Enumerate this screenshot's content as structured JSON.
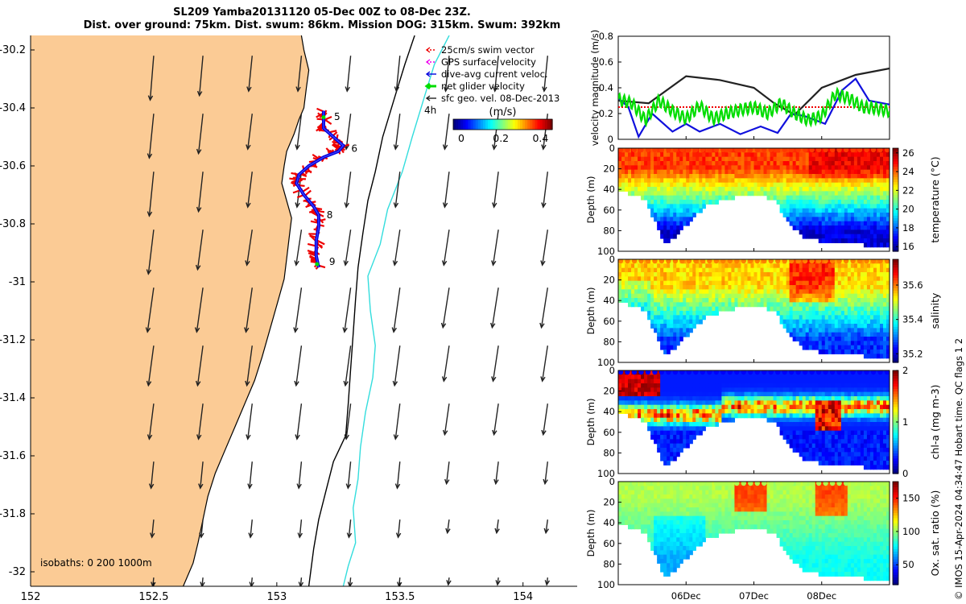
{
  "title": {
    "line1": "SL209 Yamba20131120 05-Dec 00Z to 08-Dec 23Z.",
    "line2": "Dist. over ground: 75km. Dist. swum: 86km. Mission DOG: 315km. Swum: 392km"
  },
  "credit": "© IMOS 15-Apr-2024 04:34:47 Hobart time. QC flags 1  2",
  "colors": {
    "land": "#fbcb95",
    "coast": "#000000",
    "isobath_200": "#000000",
    "isobath_1000": "#33dddd",
    "track_red": "#ee0000",
    "track_blue": "#0000dd",
    "green": "#00dd00",
    "black": "#222222"
  },
  "chart_data": [
    {
      "type": "map",
      "name": "glider track map",
      "xlim": [
        152.0,
        154.22
      ],
      "ylim": [
        -32.05,
        -30.15
      ],
      "x_ticks": [
        152,
        152.5,
        153,
        153.5,
        154
      ],
      "x_tick_labels": [
        "152",
        "152.5",
        "153",
        "153.5",
        "154"
      ],
      "y_ticks": [
        -30.2,
        -30.4,
        -30.6,
        -30.8,
        -31.0,
        -31.2,
        -31.4,
        -31.6,
        -31.8,
        -32.0
      ],
      "y_tick_labels": [
        "-30.2",
        "-30.4",
        "-30.6",
        "-30.8",
        "-31",
        "-31.2",
        "-31.4",
        "-31.6",
        "-31.8",
        "-32"
      ],
      "legend": {
        "placement": "top-right",
        "entries": [
          {
            "label": "25cm/s swim vector",
            "color": "#ee0000",
            "style": "dotted-arrow"
          },
          {
            "label": "GPS surface velocity",
            "color": "#ee00ee",
            "style": "dotted-arrow"
          },
          {
            "label": "dive-avg current veloc.",
            "color": "#0000dd",
            "style": "arrow"
          },
          {
            "label": "net glider velocity",
            "color": "#00dd00",
            "style": "thick-arrow"
          },
          {
            "label": "sfc geo. vel. 08-Dec-2013",
            "color": "#222222",
            "style": "arrow"
          }
        ]
      },
      "colorbar": {
        "title": "(m/s)",
        "range": [
          0,
          0.5
        ],
        "ticks": [
          0,
          0.2,
          0.4
        ],
        "tick_labels": [
          "0",
          "0.2",
          "0.4"
        ],
        "colormap": "jet"
      },
      "isobaths_label": "isobaths: 0   200  1000m",
      "annotation_4h": "4h",
      "track": [
        [
          153.19,
          -30.41
        ],
        [
          153.19,
          -30.44
        ],
        [
          153.19,
          -30.47
        ],
        [
          153.23,
          -30.5
        ],
        [
          153.27,
          -30.53
        ],
        [
          153.25,
          -30.55
        ],
        [
          153.19,
          -30.57
        ],
        [
          153.13,
          -30.6
        ],
        [
          153.09,
          -30.63
        ],
        [
          153.08,
          -30.66
        ],
        [
          153.11,
          -30.7
        ],
        [
          153.15,
          -30.74
        ],
        [
          153.17,
          -30.77
        ],
        [
          153.17,
          -30.81
        ],
        [
          153.16,
          -30.86
        ],
        [
          153.16,
          -30.91
        ],
        [
          153.17,
          -30.95
        ]
      ],
      "day_markers": [
        {
          "label": "5",
          "lon": 153.19,
          "lat": -30.43
        },
        {
          "label": "6",
          "lon": 153.26,
          "lat": -30.54
        },
        {
          "label": "8",
          "lon": 153.16,
          "lat": -30.77
        },
        {
          "label": "9",
          "lon": 153.17,
          "lat": -30.93
        }
      ],
      "current_grid": {
        "lons": [
          152.5,
          152.7,
          152.9,
          153.1,
          153.3,
          153.5,
          153.7,
          153.9,
          154.1
        ],
        "lats": [
          -30.22,
          -30.42,
          -30.62,
          -30.82,
          -31.02,
          -31.22,
          -31.42,
          -31.62,
          -31.82,
          -32.02
        ],
        "u_by_lat_m_s": [
          [
            -0.04,
            -0.05,
            -0.05,
            -0.06,
            -0.07,
            -0.06,
            -0.05,
            -0.03,
            -0.02,
            -0.01
          ],
          [
            -0.04,
            -0.05,
            -0.05,
            -0.06,
            -0.07,
            -0.06,
            -0.05,
            -0.03,
            -0.02,
            -0.01
          ],
          [
            -0.04,
            -0.05,
            -0.05,
            -0.06,
            -0.07,
            -0.06,
            -0.05,
            -0.03,
            -0.02,
            -0.01
          ],
          [
            -0.04,
            -0.05,
            -0.05,
            -0.06,
            -0.07,
            -0.06,
            -0.05,
            -0.03,
            -0.02,
            -0.01
          ],
          [
            -0.04,
            -0.05,
            -0.05,
            -0.06,
            -0.07,
            -0.06,
            -0.05,
            -0.03,
            -0.02,
            -0.01
          ],
          [
            -0.04,
            -0.05,
            -0.05,
            -0.06,
            -0.07,
            -0.06,
            -0.05,
            -0.03,
            -0.02,
            -0.01
          ],
          [
            -0.04,
            -0.05,
            -0.05,
            -0.06,
            -0.07,
            -0.06,
            -0.05,
            -0.03,
            -0.02,
            -0.01
          ],
          [
            -0.04,
            -0.05,
            -0.05,
            -0.06,
            -0.07,
            -0.06,
            -0.05,
            -0.03,
            -0.02,
            -0.01
          ],
          [
            -0.04,
            -0.05,
            -0.05,
            -0.06,
            -0.07,
            -0.06,
            -0.05,
            -0.03,
            -0.02,
            -0.01
          ],
          [
            -0.04,
            -0.05,
            -0.05,
            -0.06,
            -0.07,
            -0.06,
            -0.05,
            -0.03,
            -0.02,
            -0.01
          ]
        ],
        "v_by_lat_m_s": [
          [
            -0.5,
            -0.5,
            -0.5,
            -0.5,
            -0.5,
            -0.45,
            -0.4,
            -0.3,
            -0.2,
            -0.1
          ],
          [
            -0.45,
            -0.45,
            -0.45,
            -0.45,
            -0.5,
            -0.45,
            -0.4,
            -0.3,
            -0.2,
            -0.1
          ],
          [
            -0.4,
            -0.4,
            -0.4,
            -0.4,
            -0.5,
            -0.45,
            -0.4,
            -0.3,
            -0.2,
            -0.1
          ],
          [
            -0.4,
            -0.4,
            -0.4,
            -0.4,
            -0.5,
            -0.45,
            -0.4,
            -0.3,
            -0.2,
            -0.1
          ],
          [
            -0.4,
            -0.4,
            -0.4,
            -0.4,
            -0.5,
            -0.45,
            -0.4,
            -0.3,
            -0.2,
            -0.1
          ],
          [
            -0.4,
            -0.4,
            -0.4,
            -0.4,
            -0.5,
            -0.45,
            -0.4,
            -0.3,
            -0.2,
            -0.1
          ],
          [
            -0.4,
            -0.4,
            -0.4,
            -0.4,
            -0.45,
            -0.4,
            -0.35,
            -0.25,
            -0.15,
            -0.08
          ],
          [
            -0.4,
            -0.4,
            -0.4,
            -0.4,
            -0.45,
            -0.4,
            -0.35,
            -0.25,
            -0.15,
            -0.08
          ],
          [
            -0.4,
            -0.4,
            -0.4,
            -0.4,
            -0.45,
            -0.4,
            -0.35,
            -0.25,
            -0.15,
            -0.08
          ],
          [
            -0.4,
            -0.4,
            -0.4,
            -0.4,
            -0.45,
            -0.4,
            -0.35,
            -0.25,
            -0.15,
            -0.08
          ]
        ]
      }
    },
    {
      "type": "line",
      "name": "velocity magnitude",
      "ylabel": "velocity magnitude (m/s)",
      "ylim": [
        0,
        0.8
      ],
      "y_ticks": [
        0,
        0.2,
        0.4,
        0.6,
        0.8
      ],
      "y_tick_labels": [
        "0",
        "0.2",
        "0.4",
        "0.6",
        "0.8"
      ],
      "xlim_days": [
        0,
        4
      ],
      "x_tick_days": [
        1,
        2,
        3
      ],
      "x_tick_labels": [
        "06Dec",
        "07Dec",
        "08Dec"
      ],
      "series": [
        {
          "name": "swim (25cm/s)",
          "color": "#ee0000",
          "x": [
            0,
            4
          ],
          "y": [
            0.25,
            0.25
          ]
        },
        {
          "name": "sfc geo. vel.",
          "color": "#222222",
          "x": [
            0,
            0.45,
            1,
            1.5,
            2,
            2.3,
            2.6,
            3,
            3.5,
            4
          ],
          "y": [
            0.3,
            0.28,
            0.49,
            0.46,
            0.4,
            0.28,
            0.19,
            0.4,
            0.5,
            0.55
          ]
        },
        {
          "name": "dive-avg current",
          "color": "#1010dd",
          "x": [
            0,
            0.15,
            0.3,
            0.5,
            0.8,
            1,
            1.2,
            1.5,
            1.8,
            2.1,
            2.35,
            2.55,
            2.75,
            3.05,
            3.3,
            3.5,
            3.7,
            4
          ],
          "y": [
            0.32,
            0.25,
            0.02,
            0.2,
            0.06,
            0.12,
            0.06,
            0.12,
            0.04,
            0.1,
            0.05,
            0.2,
            0.18,
            0.12,
            0.38,
            0.47,
            0.3,
            0.27
          ]
        },
        {
          "name": "net glider",
          "color": "#00dd00",
          "x": [
            0,
            0.2,
            0.4,
            0.6,
            0.8,
            1,
            1.2,
            1.4,
            1.6,
            1.8,
            2,
            2.2,
            2.4,
            2.6,
            2.8,
            3,
            3.2,
            3.4,
            3.6,
            3.8,
            4
          ],
          "y": [
            0.31,
            0.28,
            0.15,
            0.3,
            0.22,
            0.16,
            0.26,
            0.16,
            0.2,
            0.23,
            0.25,
            0.2,
            0.28,
            0.2,
            0.15,
            0.18,
            0.35,
            0.32,
            0.25,
            0.24,
            0.22
          ]
        }
      ]
    },
    {
      "type": "heatmap",
      "name": "temperature section",
      "ylabel": "Depth (m)",
      "y_ticks": [
        0,
        20,
        40,
        60,
        80,
        100
      ],
      "y_tick_labels": [
        "0",
        "20",
        "40",
        "60",
        "80",
        "100"
      ],
      "colorbar_label": "temperature (°C)",
      "color_range": [
        15.5,
        26.5
      ],
      "colorbar_ticks": [
        16,
        18,
        20,
        22,
        24,
        26
      ],
      "colorbar_tick_labels": [
        "16",
        "18",
        "20",
        "22",
        "24",
        "26"
      ],
      "bottom_depth_profile_m": [
        [
          0,
          40
        ],
        [
          0.4,
          50
        ],
        [
          0.7,
          95
        ],
        [
          1.0,
          75
        ],
        [
          1.3,
          55
        ],
        [
          1.7,
          48
        ],
        [
          2.0,
          45
        ],
        [
          2.3,
          50
        ],
        [
          2.5,
          70
        ],
        [
          2.7,
          85
        ],
        [
          3.0,
          90
        ],
        [
          3.4,
          93
        ],
        [
          4.0,
          95
        ]
      ],
      "surface_value": 24.5,
      "deep_value": 16.5
    },
    {
      "type": "heatmap",
      "name": "salinity section",
      "ylabel": "Depth (m)",
      "y_ticks": [
        0,
        20,
        40,
        60,
        80,
        100
      ],
      "y_tick_labels": [
        "0",
        "20",
        "40",
        "60",
        "80",
        "100"
      ],
      "colorbar_label": "salinity",
      "color_range": [
        35.15,
        35.75
      ],
      "colorbar_ticks": [
        35.2,
        35.4,
        35.6
      ],
      "colorbar_tick_labels": [
        "35.2",
        "35.4",
        "35.6"
      ],
      "bottom_depth_profile_m": [
        [
          0,
          40
        ],
        [
          0.4,
          50
        ],
        [
          0.7,
          95
        ],
        [
          1.0,
          75
        ],
        [
          1.3,
          55
        ],
        [
          1.7,
          48
        ],
        [
          2.0,
          45
        ],
        [
          2.3,
          50
        ],
        [
          2.5,
          70
        ],
        [
          2.7,
          85
        ],
        [
          3.0,
          90
        ],
        [
          3.4,
          93
        ],
        [
          4.0,
          95
        ]
      ],
      "surface_value": 35.55,
      "deep_value": 35.25
    },
    {
      "type": "heatmap",
      "name": "chlorophyll-a section",
      "ylabel": "Depth (m)",
      "y_ticks": [
        0,
        20,
        40,
        60,
        80,
        100
      ],
      "y_tick_labels": [
        "0",
        "20",
        "40",
        "60",
        "80",
        "100"
      ],
      "colorbar_label": "chl-a (mg m-3)",
      "color_range": [
        0,
        2
      ],
      "colorbar_ticks": [
        0,
        1,
        2
      ],
      "colorbar_tick_labels": [
        "0",
        "1",
        "2"
      ],
      "bottom_depth_profile_m": [
        [
          0,
          40
        ],
        [
          0.4,
          50
        ],
        [
          0.7,
          95
        ],
        [
          1.0,
          75
        ],
        [
          1.3,
          55
        ],
        [
          1.7,
          48
        ],
        [
          2.0,
          45
        ],
        [
          2.3,
          50
        ],
        [
          2.5,
          70
        ],
        [
          2.7,
          85
        ],
        [
          3.0,
          90
        ],
        [
          3.4,
          93
        ],
        [
          4.0,
          95
        ]
      ],
      "surface_value": 0.3,
      "deep_value": 0.5,
      "max_layer_depth_m": 35,
      "max_value": 1.5
    },
    {
      "type": "heatmap",
      "name": "oxygen saturation section",
      "ylabel": "Depth (m)",
      "y_ticks": [
        0,
        20,
        40,
        60,
        80,
        100
      ],
      "y_tick_labels": [
        "0",
        "20",
        "40",
        "60",
        "80",
        "100"
      ],
      "colorbar_label": "Ox. sat. ratio (%)",
      "color_range": [
        20,
        175
      ],
      "colorbar_ticks": [
        50,
        100,
        150
      ],
      "colorbar_tick_labels": [
        "50",
        "100",
        "150"
      ],
      "x_tick_days": [
        1,
        2,
        3
      ],
      "x_tick_labels": [
        "06Dec",
        "07Dec",
        "08Dec"
      ],
      "bottom_depth_profile_m": [
        [
          0,
          40
        ],
        [
          0.4,
          50
        ],
        [
          0.7,
          95
        ],
        [
          1.0,
          75
        ],
        [
          1.3,
          55
        ],
        [
          1.7,
          48
        ],
        [
          2.0,
          45
        ],
        [
          2.3,
          50
        ],
        [
          2.5,
          70
        ],
        [
          2.7,
          85
        ],
        [
          3.0,
          90
        ],
        [
          3.4,
          93
        ],
        [
          4.0,
          95
        ]
      ],
      "surface_value": 105,
      "deep_value": 80
    }
  ]
}
